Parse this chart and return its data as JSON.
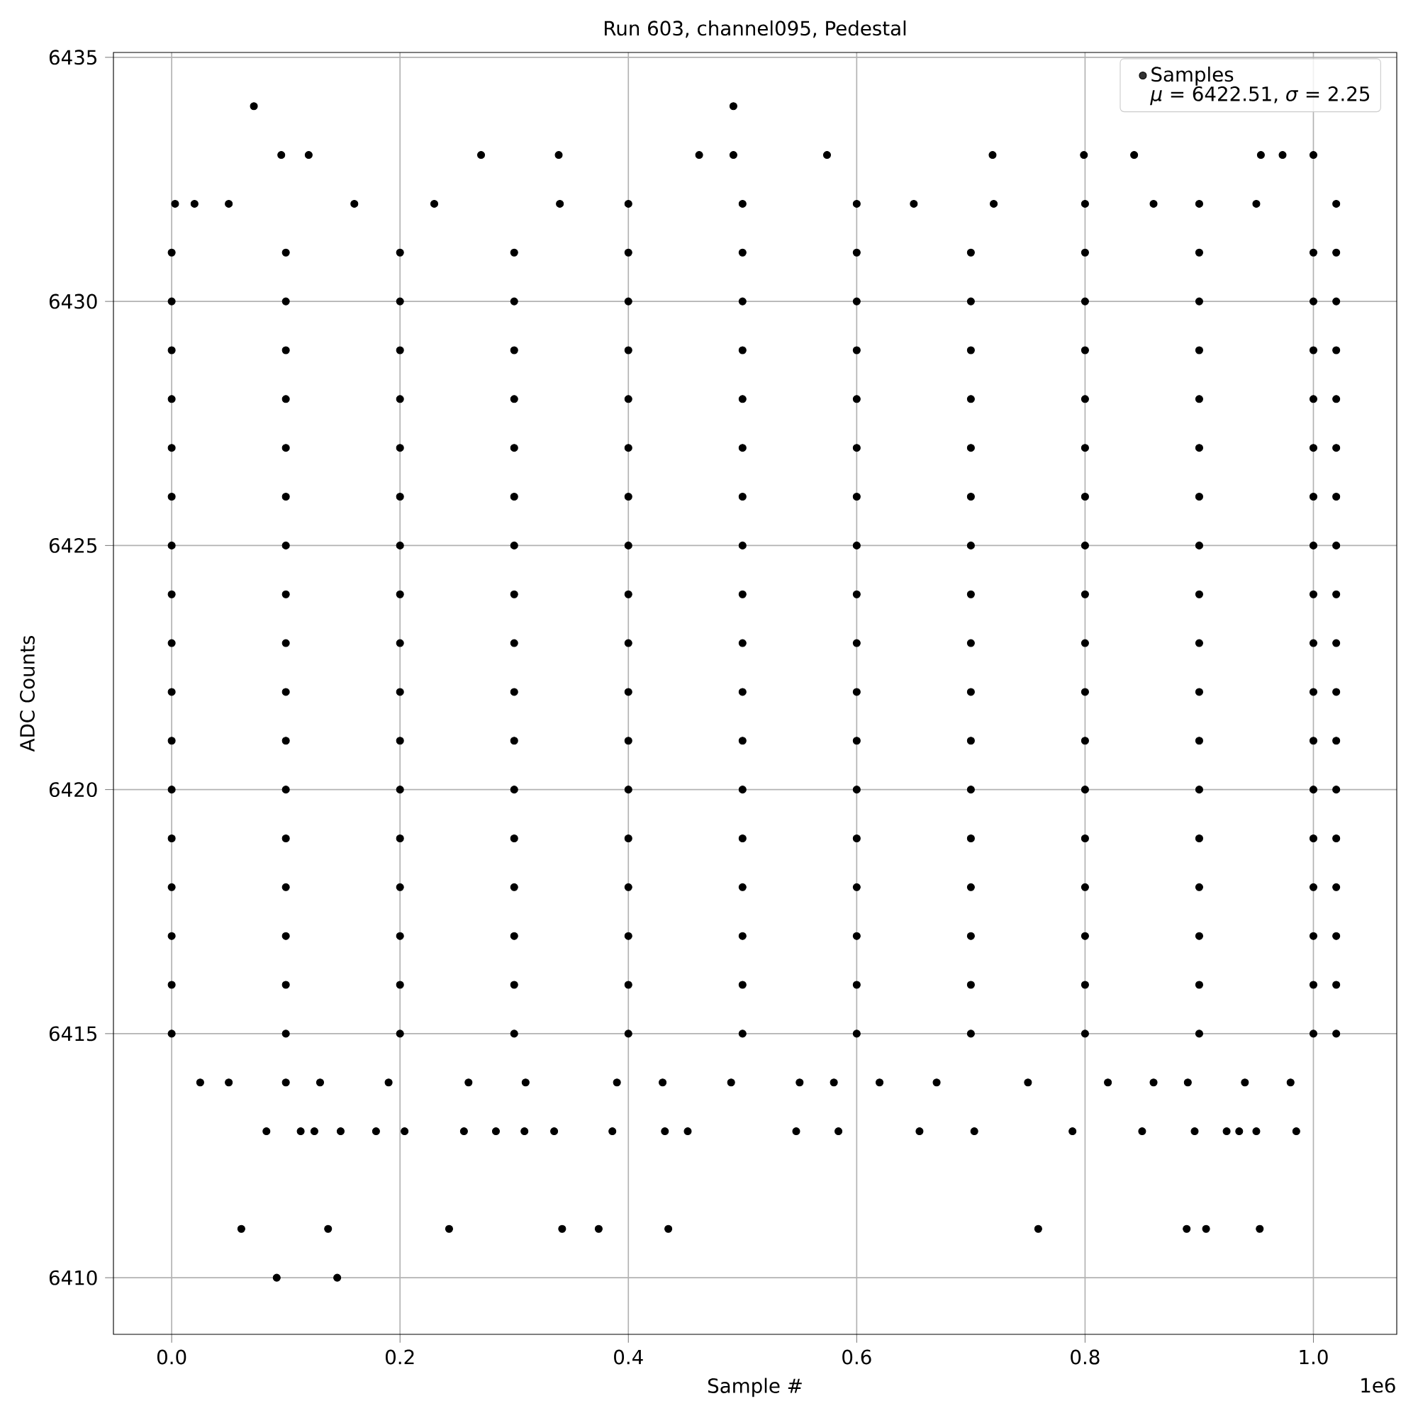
{
  "chart_data": {
    "type": "scatter",
    "title": "Run 603, channel095, Pedestal",
    "xlabel": "Sample #",
    "ylabel": "ADC Counts",
    "annotations": [
      "1e6",
      "*μ* = 6422.51, *σ* = 2.25"
    ],
    "xlim": [
      -0.051,
      1.073
    ],
    "ylim": [
      6408.84,
      6435.1
    ],
    "xticks": [
      {
        "value": 0,
        "label": "0.0"
      },
      0.2,
      0.4,
      0.6,
      0.8,
      {
        "value": 1,
        "label": "1.0"
      }
    ],
    "yticks": [
      6410,
      6415,
      6420,
      6425,
      6430,
      6435
    ],
    "grid": true,
    "legend": "top right",
    "marker": "circle",
    "series": [
      {
        "name": "Samples",
        "color": "#000000",
        "x": [
          0,
          0.1,
          0.2,
          0.3,
          0.4,
          0.5,
          0.6,
          0.7,
          0.8,
          0.9,
          1.0,
          1.02,
          0,
          0.1,
          0.2,
          0.3,
          0.4,
          0.5,
          0.6,
          0.7,
          0.8,
          0.9,
          1.0,
          1.02,
          0,
          0.1,
          0.2,
          0.3,
          0.4,
          0.5,
          0.6,
          0.7,
          0.8,
          0.9,
          1.0,
          1.02,
          0,
          0.1,
          0.2,
          0.3,
          0.4,
          0.5,
          0.6,
          0.7,
          0.8,
          0.9,
          1.0,
          1.02,
          0,
          0.1,
          0.2,
          0.3,
          0.4,
          0.5,
          0.6,
          0.7,
          0.8,
          0.9,
          1.0,
          1.02,
          0,
          0.1,
          0.2,
          0.3,
          0.4,
          0.5,
          0.6,
          0.7,
          0.8,
          0.9,
          1.0,
          1.02,
          0,
          0.1,
          0.2,
          0.3,
          0.4,
          0.5,
          0.6,
          0.7,
          0.8,
          0.9,
          1.0,
          1.02,
          0,
          0.1,
          0.2,
          0.3,
          0.4,
          0.5,
          0.6,
          0.7,
          0.8,
          0.9,
          1.0,
          1.02,
          0,
          0.1,
          0.2,
          0.3,
          0.4,
          0.5,
          0.6,
          0.7,
          0.8,
          0.9,
          1.0,
          1.02,
          0,
          0.1,
          0.2,
          0.3,
          0.4,
          0.5,
          0.6,
          0.7,
          0.8,
          0.9,
          1.0,
          1.02,
          0,
          0.1,
          0.2,
          0.3,
          0.4,
          0.5,
          0.6,
          0.7,
          0.8,
          0.9,
          1.0,
          1.02,
          0,
          0.1,
          0.2,
          0.3,
          0.4,
          0.5,
          0.6,
          0.7,
          0.8,
          0.9,
          1.0,
          1.02,
          0,
          0.1,
          0.2,
          0.3,
          0.4,
          0.5,
          0.6,
          0.7,
          0.8,
          0.9,
          1.0,
          1.02,
          0,
          0.1,
          0.2,
          0.3,
          0.4,
          0.5,
          0.6,
          0.7,
          0.8,
          0.9,
          1.0,
          1.02,
          0,
          0.1,
          0.2,
          0.3,
          0.4,
          0.5,
          0.6,
          0.7,
          0.8,
          0.9,
          1.0,
          1.02,
          0,
          0.1,
          0.2,
          0.3,
          0.4,
          0.5,
          0.6,
          0.7,
          0.8,
          0.9,
          1.0,
          1.02,
          0,
          0.1,
          0.2,
          0.3,
          0.4,
          0.5,
          0.6,
          0.7,
          0.8,
          0.9,
          1.0,
          1.02,
          0.003,
          0.02,
          0.05,
          0.16,
          0.23,
          0.34,
          0.4,
          0.5,
          0.6,
          0.65,
          0.72,
          0.8,
          0.86,
          0.9,
          0.95,
          1.02,
          0.025,
          0.05,
          0.1,
          0.13,
          0.19,
          0.26,
          0.31,
          0.39,
          0.43,
          0.49,
          0.55,
          0.58,
          0.62,
          0.67,
          0.75,
          0.82,
          0.86,
          0.89,
          0.94,
          0.98,
          0.083,
          0.113,
          0.125,
          0.148,
          0.179,
          0.204,
          0.256,
          0.284,
          0.309,
          0.335,
          0.386,
          0.432,
          0.452,
          0.547,
          0.584,
          0.655,
          0.703,
          0.789,
          0.85,
          0.896,
          0.924,
          0.935,
          0.95,
          0.985,
          0.061,
          0.137,
          0.243,
          0.342,
          0.374,
          0.435,
          0.759,
          0.889,
          0.906,
          0.953,
          0.092,
          0.145,
          0.096,
          0.12,
          0.271,
          0.339,
          0.462,
          0.492,
          0.574,
          0.719,
          0.799,
          0.843,
          0.954,
          0.973,
          1.0,
          0.072,
          0.492
        ],
        "values": [
          6415,
          6415,
          6415,
          6415,
          6415,
          6415,
          6415,
          6415,
          6415,
          6415,
          6415,
          6415,
          6416,
          6416,
          6416,
          6416,
          6416,
          6416,
          6416,
          6416,
          6416,
          6416,
          6416,
          6416,
          6417,
          6417,
          6417,
          6417,
          6417,
          6417,
          6417,
          6417,
          6417,
          6417,
          6417,
          6417,
          6418,
          6418,
          6418,
          6418,
          6418,
          6418,
          6418,
          6418,
          6418,
          6418,
          6418,
          6418,
          6419,
          6419,
          6419,
          6419,
          6419,
          6419,
          6419,
          6419,
          6419,
          6419,
          6419,
          6419,
          6420,
          6420,
          6420,
          6420,
          6420,
          6420,
          6420,
          6420,
          6420,
          6420,
          6420,
          6420,
          6421,
          6421,
          6421,
          6421,
          6421,
          6421,
          6421,
          6421,
          6421,
          6421,
          6421,
          6421,
          6422,
          6422,
          6422,
          6422,
          6422,
          6422,
          6422,
          6422,
          6422,
          6422,
          6422,
          6422,
          6423,
          6423,
          6423,
          6423,
          6423,
          6423,
          6423,
          6423,
          6423,
          6423,
          6423,
          6423,
          6424,
          6424,
          6424,
          6424,
          6424,
          6424,
          6424,
          6424,
          6424,
          6424,
          6424,
          6424,
          6425,
          6425,
          6425,
          6425,
          6425,
          6425,
          6425,
          6425,
          6425,
          6425,
          6425,
          6425,
          6426,
          6426,
          6426,
          6426,
          6426,
          6426,
          6426,
          6426,
          6426,
          6426,
          6426,
          6426,
          6427,
          6427,
          6427,
          6427,
          6427,
          6427,
          6427,
          6427,
          6427,
          6427,
          6427,
          6427,
          6428,
          6428,
          6428,
          6428,
          6428,
          6428,
          6428,
          6428,
          6428,
          6428,
          6428,
          6428,
          6429,
          6429,
          6429,
          6429,
          6429,
          6429,
          6429,
          6429,
          6429,
          6429,
          6429,
          6429,
          6430,
          6430,
          6430,
          6430,
          6430,
          6430,
          6430,
          6430,
          6430,
          6430,
          6430,
          6430,
          6431,
          6431,
          6431,
          6431,
          6431,
          6431,
          6431,
          6431,
          6431,
          6431,
          6431,
          6431,
          6432,
          6432,
          6432,
          6432,
          6432,
          6432,
          6432,
          6432,
          6432,
          6432,
          6432,
          6432,
          6432,
          6432,
          6432,
          6432,
          6414,
          6414,
          6414,
          6414,
          6414,
          6414,
          6414,
          6414,
          6414,
          6414,
          6414,
          6414,
          6414,
          6414,
          6414,
          6414,
          6414,
          6414,
          6414,
          6414,
          6413,
          6413,
          6413,
          6413,
          6413,
          6413,
          6413,
          6413,
          6413,
          6413,
          6413,
          6413,
          6413,
          6413,
          6413,
          6413,
          6413,
          6413,
          6413,
          6413,
          6413,
          6413,
          6413,
          6413,
          6411,
          6411,
          6411,
          6411,
          6411,
          6411,
          6411,
          6411,
          6411,
          6411,
          6410,
          6410,
          6433,
          6433,
          6433,
          6433,
          6433,
          6433,
          6433,
          6433,
          6433,
          6433,
          6433,
          6433,
          6433,
          6434,
          6434
        ]
      }
    ]
  }
}
